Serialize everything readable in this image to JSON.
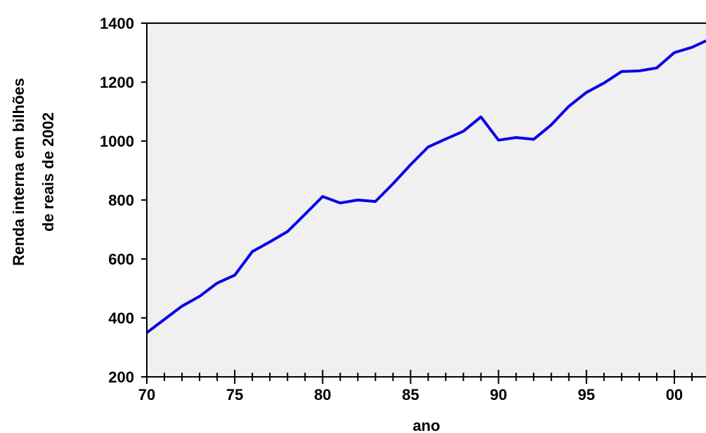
{
  "chart_data": {
    "type": "line",
    "title": "",
    "xlabel": "ano",
    "ylabel_lines": [
      "Renda interna em bilhões",
      "de reais de 2002"
    ],
    "x_tick_labels": [
      {
        "x": 1970,
        "label": "70"
      },
      {
        "x": 1975,
        "label": "75"
      },
      {
        "x": 1980,
        "label": "80"
      },
      {
        "x": 1985,
        "label": "85"
      },
      {
        "x": 1990,
        "label": "90"
      },
      {
        "x": 1995,
        "label": "95"
      },
      {
        "x": 2000,
        "label": "00"
      }
    ],
    "y_ticks": [
      200,
      400,
      600,
      800,
      1000,
      1200,
      1400
    ],
    "xlim": [
      1970,
      2001.8
    ],
    "ylim": [
      200,
      1400
    ],
    "grid": false,
    "background_color": "#f0f0f0",
    "line_color": "#0a00e6",
    "series": [
      {
        "x": [
          1970,
          1971,
          1972,
          1973,
          1974,
          1975,
          1976,
          1977,
          1978,
          1979,
          1980,
          1981,
          1982,
          1983,
          1984,
          1985,
          1986,
          1987,
          1988,
          1989,
          1990,
          1991,
          1992,
          1993,
          1994,
          1995,
          1996,
          1997,
          1998,
          1999,
          2000,
          2001,
          2001.8
        ],
        "values": [
          350,
          395,
          440,
          473,
          518,
          545,
          625,
          658,
          693,
          752,
          812,
          790,
          800,
          795,
          855,
          920,
          980,
          1007,
          1033,
          1082,
          1003,
          1012,
          1006,
          1055,
          1118,
          1165,
          1197,
          1236,
          1238,
          1248,
          1300,
          1318,
          1340
        ]
      }
    ]
  }
}
